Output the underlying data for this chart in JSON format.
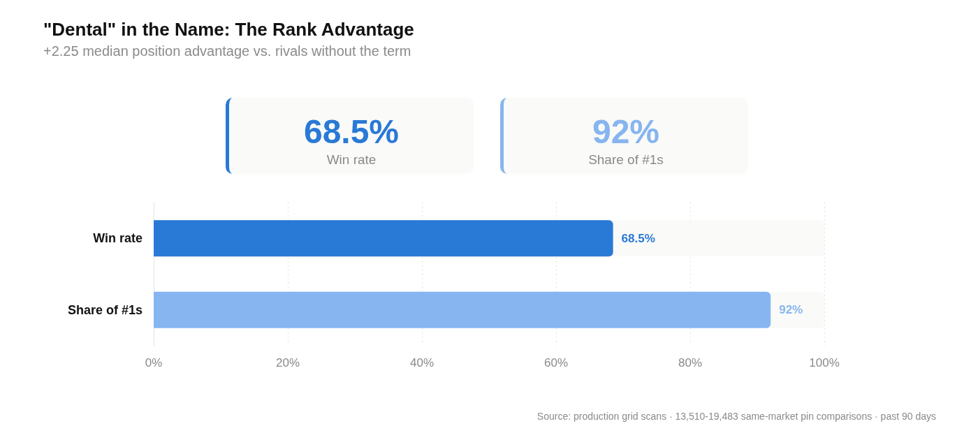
{
  "chart_data": {
    "type": "bar",
    "orientation": "horizontal",
    "title": "\"Dental\" in the Name: The Rank Advantage",
    "subtitle": "+2.25 median position advantage vs. rivals without the term",
    "categories": [
      "Win rate",
      "Share of #1s"
    ],
    "values": [
      68.5,
      92
    ],
    "colors": [
      "#2979d6",
      "#86b5f0"
    ],
    "value_labels": [
      "68.5%",
      "92%"
    ],
    "xlim": [
      0,
      100
    ],
    "xticks": [
      {
        "value": 0,
        "label": "0%"
      },
      {
        "value": 20,
        "label": "20%"
      },
      {
        "value": 40,
        "label": "40%"
      },
      {
        "value": 60,
        "label": "60%"
      },
      {
        "value": 80,
        "label": "80%"
      },
      {
        "value": 100,
        "label": "100%"
      }
    ],
    "grid": "x",
    "annotations": [
      "Source: production grid scans · 13,510-19,483 same-market pin comparisons · past 90 days"
    ]
  }
}
